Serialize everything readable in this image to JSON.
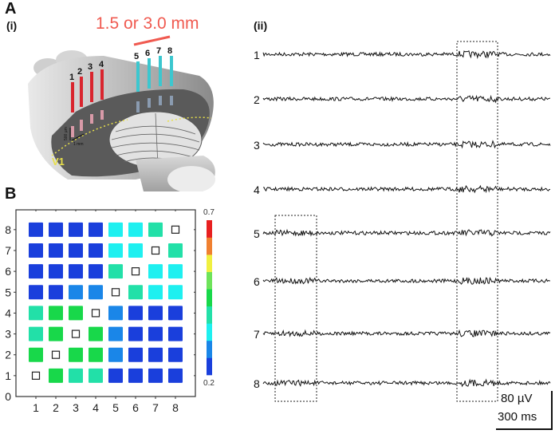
{
  "panel_a": {
    "label": "A",
    "sub_i": "(i)",
    "sub_ii": "(ii)",
    "spacing_label": "1.5 or 3.0 mm",
    "electrodes": [
      "1",
      "2",
      "3",
      "4",
      "5",
      "6",
      "7",
      "8"
    ],
    "scale_depth": "500 µm",
    "scale_width": "1 mm",
    "area_label": "V1",
    "colors": {
      "group1": "#d9252e",
      "group2": "#3cc7cf",
      "spacing": "#f05a50",
      "v1": "#e8e04a"
    }
  },
  "panel_b": {
    "label": "B"
  },
  "traces": {
    "channel_labels": [
      "1",
      "2",
      "3",
      "4",
      "5",
      "6",
      "7",
      "8"
    ],
    "scale_voltage": "80 µV",
    "scale_time": "300 ms"
  },
  "chart_data": {
    "type": "heatmap",
    "x_ticks": [
      "1",
      "2",
      "3",
      "4",
      "5",
      "6",
      "7",
      "8"
    ],
    "y_ticks": [
      "0",
      "1",
      "2",
      "3",
      "4",
      "5",
      "6",
      "7",
      "8"
    ],
    "xlim": [
      0,
      9
    ],
    "ylim": [
      0,
      9
    ],
    "colorbar": {
      "min_label": "0.2",
      "max_label": "0.7",
      "min": 0.2,
      "max": 0.7,
      "colors": [
        "#1a3fdc",
        "#1a86e8",
        "#1ef0f0",
        "#22e0a8",
        "#18d84a",
        "#6ee35a",
        "#f0f040",
        "#f08030",
        "#e82020"
      ]
    },
    "rows_y8_to_y1": [
      [
        0.22,
        0.22,
        0.22,
        0.22,
        0.32,
        0.32,
        0.38,
        null
      ],
      [
        0.22,
        0.22,
        0.22,
        0.22,
        0.32,
        0.32,
        null,
        0.38
      ],
      [
        0.22,
        0.22,
        0.22,
        0.22,
        0.38,
        null,
        0.32,
        0.32
      ],
      [
        0.22,
        0.22,
        0.27,
        0.27,
        null,
        0.38,
        0.32,
        0.32
      ],
      [
        0.38,
        0.43,
        0.45,
        null,
        0.27,
        0.22,
        0.22,
        0.22
      ],
      [
        0.38,
        0.43,
        null,
        0.45,
        0.27,
        0.22,
        0.22,
        0.22
      ],
      [
        0.43,
        null,
        0.43,
        0.43,
        0.27,
        0.22,
        0.22,
        0.22
      ],
      [
        null,
        0.43,
        0.38,
        0.38,
        0.22,
        0.22,
        0.22,
        0.22
      ]
    ]
  }
}
